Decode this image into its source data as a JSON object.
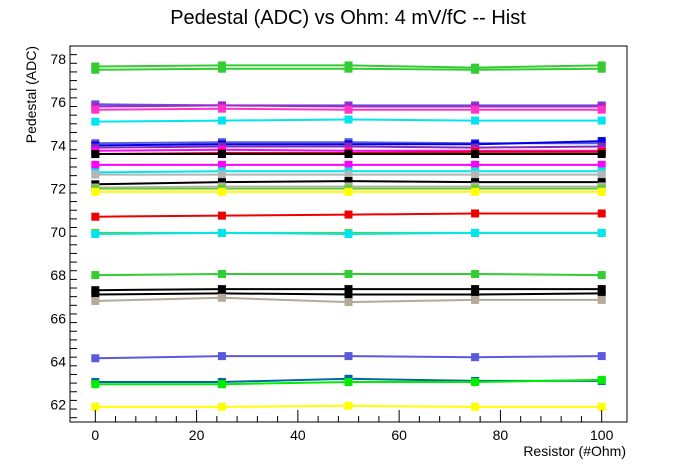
{
  "chart_data": {
    "type": "line",
    "title": "Pedestal (ADC) vs Ohm: 4 mV/fC -- Hist",
    "xlabel": "Resistor (#Ohm)",
    "ylabel": "Pedestal (ADC)",
    "xlim": [
      -5,
      105
    ],
    "ylim": [
      61.2,
      78.6
    ],
    "x_ticks": [
      "0",
      "20",
      "40",
      "60",
      "80",
      "100"
    ],
    "y_ticks": [
      "62",
      "64",
      "66",
      "68",
      "70",
      "72",
      "74",
      "76",
      "78"
    ],
    "grid": false,
    "legend": "none",
    "x": [
      0,
      25,
      50,
      75,
      100
    ],
    "series": [
      {
        "color": "#33cc33",
        "values": [
          77.65,
          77.7,
          77.7,
          77.6,
          77.7
        ]
      },
      {
        "color": "#33cc33",
        "values": [
          77.5,
          77.55,
          77.55,
          77.5,
          77.55
        ]
      },
      {
        "color": "#5a5adc",
        "values": [
          75.9,
          75.85,
          75.85,
          75.85,
          75.85
        ]
      },
      {
        "color": "#aa22cc",
        "values": [
          75.8,
          75.85,
          75.8,
          75.8,
          75.8
        ]
      },
      {
        "color": "#ff33cc",
        "values": [
          75.65,
          75.7,
          75.65,
          75.65,
          75.65
        ]
      },
      {
        "color": "#00e5ee",
        "values": [
          75.1,
          75.15,
          75.2,
          75.15,
          75.15
        ]
      },
      {
        "color": "#5a5adc",
        "values": [
          74.1,
          74.15,
          74.15,
          74.1,
          74.1
        ]
      },
      {
        "color": "#0000ee",
        "values": [
          74.0,
          74.05,
          74.05,
          74.05,
          74.2
        ]
      },
      {
        "color": "#7d2db3",
        "values": [
          73.9,
          73.95,
          73.95,
          73.9,
          73.95
        ]
      },
      {
        "color": "#ff00ff",
        "values": [
          73.75,
          73.8,
          73.75,
          73.75,
          73.75
        ]
      },
      {
        "color": "#ee0000",
        "values": [
          73.6,
          73.65,
          73.65,
          73.7,
          73.7
        ]
      },
      {
        "color": "#000000",
        "values": [
          73.6,
          73.6,
          73.6,
          73.6,
          73.6
        ]
      },
      {
        "color": "#ff00ff",
        "values": [
          73.1,
          73.1,
          73.1,
          73.1,
          73.1
        ]
      },
      {
        "color": "#00e5ee",
        "values": [
          72.75,
          72.8,
          72.8,
          72.8,
          72.8
        ]
      },
      {
        "color": "#b5b5b5",
        "values": [
          72.65,
          72.65,
          72.65,
          72.65,
          72.65
        ]
      },
      {
        "color": "#000000",
        "values": [
          72.2,
          72.3,
          72.35,
          72.3,
          72.3
        ]
      },
      {
        "color": "#b5b5b5",
        "values": [
          72.05,
          72.1,
          72.1,
          72.1,
          72.1
        ]
      },
      {
        "color": "#66cc33",
        "values": [
          72.0,
          72.0,
          72.0,
          72.0,
          72.0
        ]
      },
      {
        "color": "#ffff00",
        "values": [
          71.85,
          71.85,
          71.85,
          71.85,
          71.85
        ]
      },
      {
        "color": "#ee0000",
        "values": [
          70.7,
          70.75,
          70.8,
          70.85,
          70.85
        ]
      },
      {
        "color": "#66cc33",
        "values": [
          69.95,
          69.95,
          69.95,
          69.95,
          69.95
        ]
      },
      {
        "color": "#00e5ee",
        "values": [
          69.9,
          69.95,
          69.9,
          69.95,
          69.95
        ]
      },
      {
        "color": "#33cc33",
        "values": [
          68.0,
          68.05,
          68.05,
          68.05,
          68.0
        ]
      },
      {
        "color": "#000000",
        "values": [
          67.3,
          67.35,
          67.35,
          67.35,
          67.35
        ]
      },
      {
        "color": "#000000",
        "values": [
          67.1,
          67.15,
          67.1,
          67.1,
          67.15
        ]
      },
      {
        "color": "#b5a99a",
        "values": [
          66.8,
          66.95,
          66.75,
          66.85,
          66.85
        ]
      },
      {
        "color": "#5a5adc",
        "values": [
          64.15,
          64.25,
          64.25,
          64.2,
          64.25
        ]
      },
      {
        "color": "#0066aa",
        "values": [
          63.05,
          63.05,
          63.2,
          63.1,
          63.1
        ]
      },
      {
        "color": "#00ee00",
        "values": [
          62.95,
          62.95,
          63.05,
          63.05,
          63.15
        ]
      },
      {
        "color": "#ffff00",
        "values": [
          61.9,
          61.9,
          61.95,
          61.9,
          61.9
        ]
      }
    ]
  }
}
